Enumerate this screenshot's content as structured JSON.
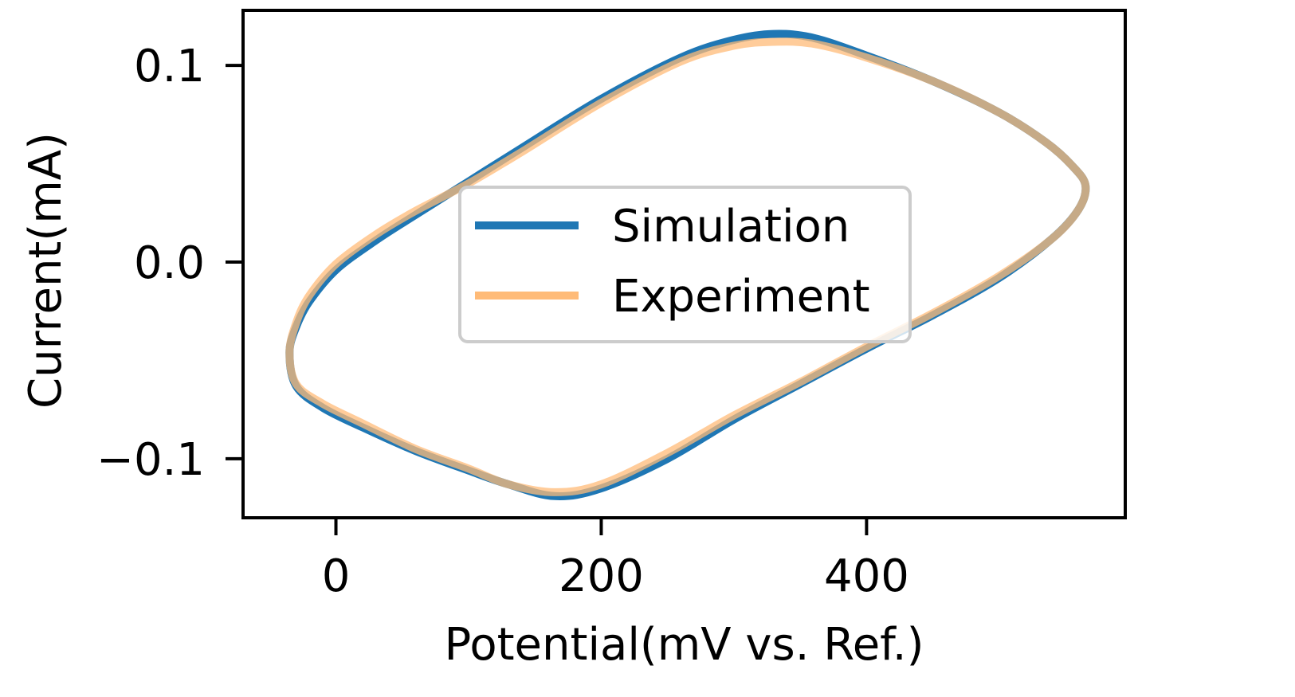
{
  "chart_data": {
    "type": "line",
    "xlabel": "Potential(mV vs. Ref.)",
    "ylabel": "Current(mA)",
    "xlim": [
      -70,
      595
    ],
    "ylim": [
      -0.13,
      0.128
    ],
    "xticks": [
      0,
      200,
      400
    ],
    "xtick_labels": [
      "0",
      "200",
      "400"
    ],
    "yticks": [
      0.1,
      0.0,
      -0.1
    ],
    "ytick_labels": [
      "0.1",
      "0.0",
      "−0.1"
    ],
    "grid": false,
    "legend_position": "center",
    "series": [
      {
        "name": "Simulation",
        "color": "#1f77b4",
        "x": [
          -35,
          -30,
          -20,
          0,
          30,
          60,
          100,
          140,
          200,
          260,
          300,
          330,
          360,
          400,
          450,
          500,
          535,
          555,
          565,
          560,
          540,
          500,
          450,
          400,
          350,
          300,
          250,
          200,
          165,
          130,
          100,
          60,
          20,
          -10,
          -30,
          -35
        ],
        "y": [
          -0.046,
          -0.033,
          -0.02,
          -0.004,
          0.011,
          0.024,
          0.041,
          0.058,
          0.083,
          0.104,
          0.113,
          0.116,
          0.114,
          0.105,
          0.092,
          0.076,
          0.061,
          0.049,
          0.039,
          0.027,
          0.012,
          -0.008,
          -0.027,
          -0.044,
          -0.062,
          -0.08,
          -0.1,
          -0.115,
          -0.119,
          -0.113,
          -0.106,
          -0.096,
          -0.084,
          -0.074,
          -0.063,
          -0.046
        ]
      },
      {
        "name": "Experiment",
        "color": "#ffbb78",
        "x": [
          -35,
          -30,
          -20,
          0,
          30,
          60,
          100,
          140,
          200,
          260,
          300,
          330,
          360,
          400,
          450,
          500,
          535,
          555,
          565,
          560,
          540,
          500,
          450,
          400,
          350,
          300,
          250,
          200,
          165,
          130,
          100,
          60,
          20,
          -10,
          -30,
          -35
        ],
        "y": [
          -0.046,
          -0.031,
          -0.017,
          -0.001,
          0.014,
          0.026,
          0.04,
          0.056,
          0.081,
          0.102,
          0.11,
          0.112,
          0.111,
          0.104,
          0.092,
          0.076,
          0.061,
          0.049,
          0.039,
          0.027,
          0.012,
          -0.007,
          -0.026,
          -0.043,
          -0.061,
          -0.078,
          -0.097,
          -0.113,
          -0.117,
          -0.113,
          -0.105,
          -0.095,
          -0.082,
          -0.072,
          -0.062,
          -0.046
        ]
      }
    ]
  }
}
